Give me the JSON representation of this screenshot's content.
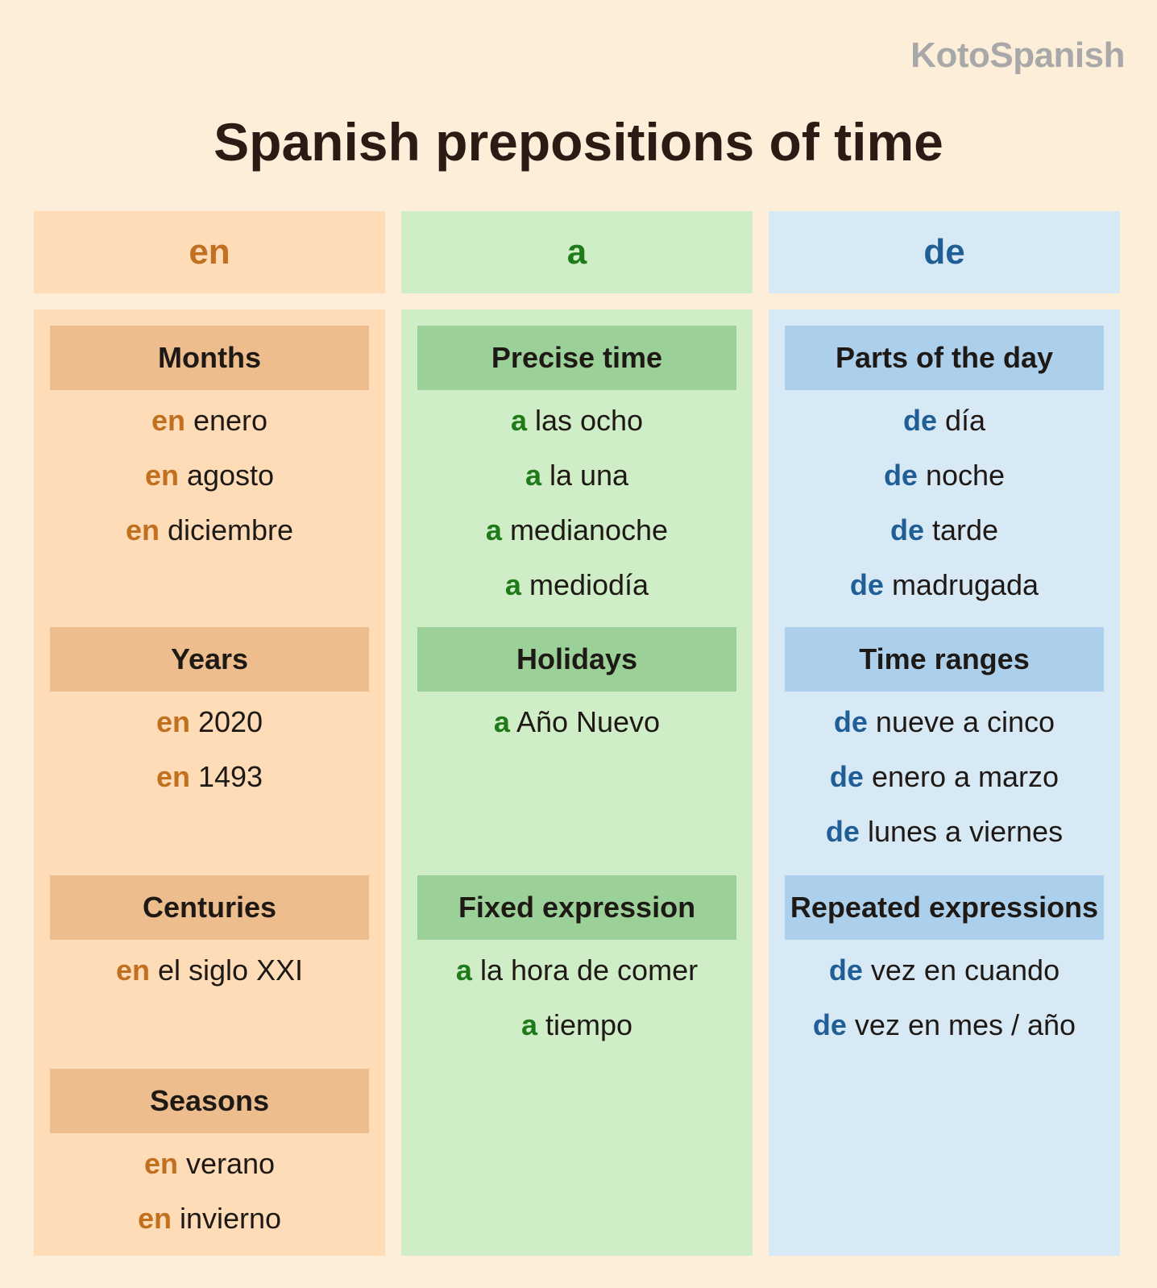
{
  "brand": "KotoSpanish",
  "title": "Spanish prepositions of time",
  "columns": {
    "en": {
      "header": "en",
      "sections": [
        {
          "title": "Months",
          "items": [
            {
              "prep": "en",
              "rest": " enero"
            },
            {
              "prep": "en",
              "rest": " agosto"
            },
            {
              "prep": "en",
              "rest": " diciembre"
            }
          ]
        },
        {
          "title": "Years",
          "items": [
            {
              "prep": "en",
              "rest": " 2020"
            },
            {
              "prep": "en",
              "rest": " 1493"
            }
          ]
        },
        {
          "title": "Centuries",
          "items": [
            {
              "prep": "en",
              "rest": " el siglo XXI"
            }
          ]
        },
        {
          "title": "Seasons",
          "items": [
            {
              "prep": "en",
              "rest": " verano"
            },
            {
              "prep": "en",
              "rest": " invierno"
            }
          ]
        }
      ]
    },
    "a": {
      "header": "a",
      "sections": [
        {
          "title": "Precise time",
          "items": [
            {
              "prep": "a",
              "rest": " las ocho"
            },
            {
              "prep": "a",
              "rest": " la una"
            },
            {
              "prep": "a",
              "rest": " medianoche"
            },
            {
              "prep": "a",
              "rest": " mediodía"
            }
          ]
        },
        {
          "title": "Holidays",
          "items": [
            {
              "prep": "a",
              "rest": " Año Nuevo"
            }
          ]
        },
        {
          "title": "Fixed expression",
          "items": [
            {
              "prep": "a",
              "rest": " la hora de comer"
            },
            {
              "prep": "a",
              "rest": " tiempo"
            }
          ]
        }
      ]
    },
    "de": {
      "header": "de",
      "sections": [
        {
          "title": "Parts of the day",
          "items": [
            {
              "prep": "de",
              "rest": " día"
            },
            {
              "prep": "de",
              "rest": " noche"
            },
            {
              "prep": "de",
              "rest": " tarde"
            },
            {
              "prep": "de",
              "rest": " madrugada"
            }
          ]
        },
        {
          "title": "Time ranges",
          "items": [
            {
              "prep": "de",
              "rest": " nueve a cinco"
            },
            {
              "prep": "de",
              "rest": " enero a marzo"
            },
            {
              "prep": "de",
              "rest": " lunes a viernes"
            }
          ]
        },
        {
          "title": "Repeated expressions",
          "items": [
            {
              "prep": "de",
              "rest": " vez en cuando"
            },
            {
              "prep": "de",
              "rest": " vez en mes / año"
            }
          ]
        }
      ]
    }
  }
}
